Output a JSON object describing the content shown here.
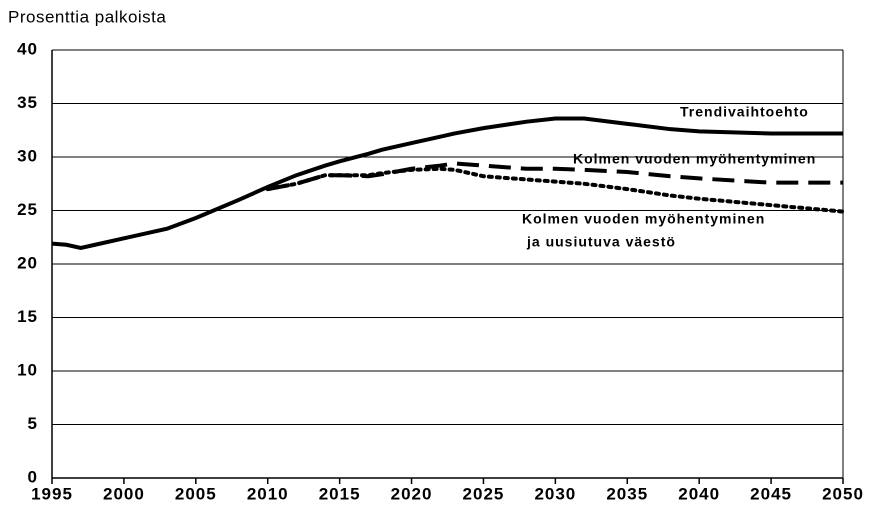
{
  "chart_data": {
    "type": "line",
    "y_label": "Prosenttia palkoista",
    "x": [
      1995,
      1996,
      1997,
      1998,
      2000,
      2003,
      2005,
      2008,
      2010,
      2012,
      2014,
      2015,
      2017,
      2018,
      2020,
      2022,
      2023,
      2025,
      2028,
      2030,
      2032,
      2035,
      2038,
      2040,
      2045,
      2050
    ],
    "xlim": [
      1995,
      2050
    ],
    "xticks": [
      1995,
      2000,
      2005,
      2010,
      2015,
      2020,
      2025,
      2030,
      2035,
      2040,
      2045,
      2050
    ],
    "ylim": [
      0,
      40
    ],
    "yticks": [
      0,
      5,
      10,
      15,
      20,
      25,
      30,
      35,
      40
    ],
    "grid": true,
    "series": [
      {
        "name": "Trendivaihtoehto",
        "color": "#000000",
        "dash": "solid",
        "values": [
          21.9,
          21.8,
          21.5,
          21.8,
          22.4,
          23.3,
          24.3,
          26.0,
          27.2,
          28.3,
          29.2,
          29.6,
          30.3,
          30.7,
          31.3,
          31.9,
          32.2,
          32.7,
          33.3,
          33.6,
          33.6,
          33.1,
          32.6,
          32.4,
          32.2,
          32.2
        ]
      },
      {
        "name": "Kolmen vuoden myöhentyminen",
        "color": "#000000",
        "dash": "dashed",
        "values": [
          null,
          null,
          null,
          null,
          null,
          null,
          null,
          null,
          27.0,
          27.5,
          28.3,
          28.3,
          28.2,
          28.4,
          28.9,
          29.2,
          29.4,
          29.2,
          28.9,
          28.9,
          28.8,
          28.6,
          28.2,
          28.0,
          27.6,
          27.6
        ]
      },
      {
        "name": [
          "Kolmen  vuoden myöhentyminen",
          "ja uusiutuva väestö"
        ],
        "color": "#000000",
        "dash": "dotted",
        "values": [
          null,
          null,
          null,
          null,
          null,
          null,
          null,
          null,
          27.0,
          27.5,
          28.3,
          28.3,
          28.3,
          28.5,
          28.8,
          28.9,
          28.8,
          28.2,
          27.9,
          27.7,
          27.5,
          27.0,
          26.4,
          26.1,
          25.5,
          24.9
        ]
      }
    ]
  }
}
